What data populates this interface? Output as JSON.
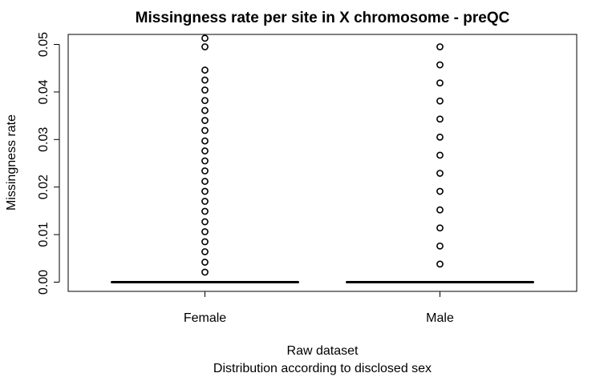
{
  "chart_data": {
    "type": "boxplot",
    "title": "Missingness rate per site in X chromosome - preQC",
    "xlabel_line1": "Raw dataset",
    "xlabel_line2": "Distribution according to disclosed sex",
    "ylabel": "Missingness rate",
    "ylim": [
      0,
      0.052
    ],
    "yticks": [
      "0.00",
      "0.01",
      "0.02",
      "0.03",
      "0.04",
      "0.05"
    ],
    "categories": [
      "Female",
      "Male"
    ],
    "boxes": [
      {
        "category": "Female",
        "median": 0,
        "q1": 0,
        "q3": 0,
        "outliers": [
          0.0021,
          0.0042,
          0.0064,
          0.0085,
          0.0106,
          0.0127,
          0.0149,
          0.017,
          0.0191,
          0.0212,
          0.0234,
          0.0255,
          0.0276,
          0.0297,
          0.0319,
          0.034,
          0.0361,
          0.0382,
          0.0404,
          0.0425,
          0.0446,
          0.0495,
          0.0513
        ]
      },
      {
        "category": "Male",
        "median": 0,
        "q1": 0,
        "q3": 0,
        "outliers": [
          0.0038,
          0.0076,
          0.0114,
          0.0152,
          0.0191,
          0.0229,
          0.0267,
          0.0305,
          0.0343,
          0.0381,
          0.0419,
          0.0457,
          0.0495
        ]
      }
    ],
    "box_color": "#000000",
    "background": "#ffffff"
  }
}
